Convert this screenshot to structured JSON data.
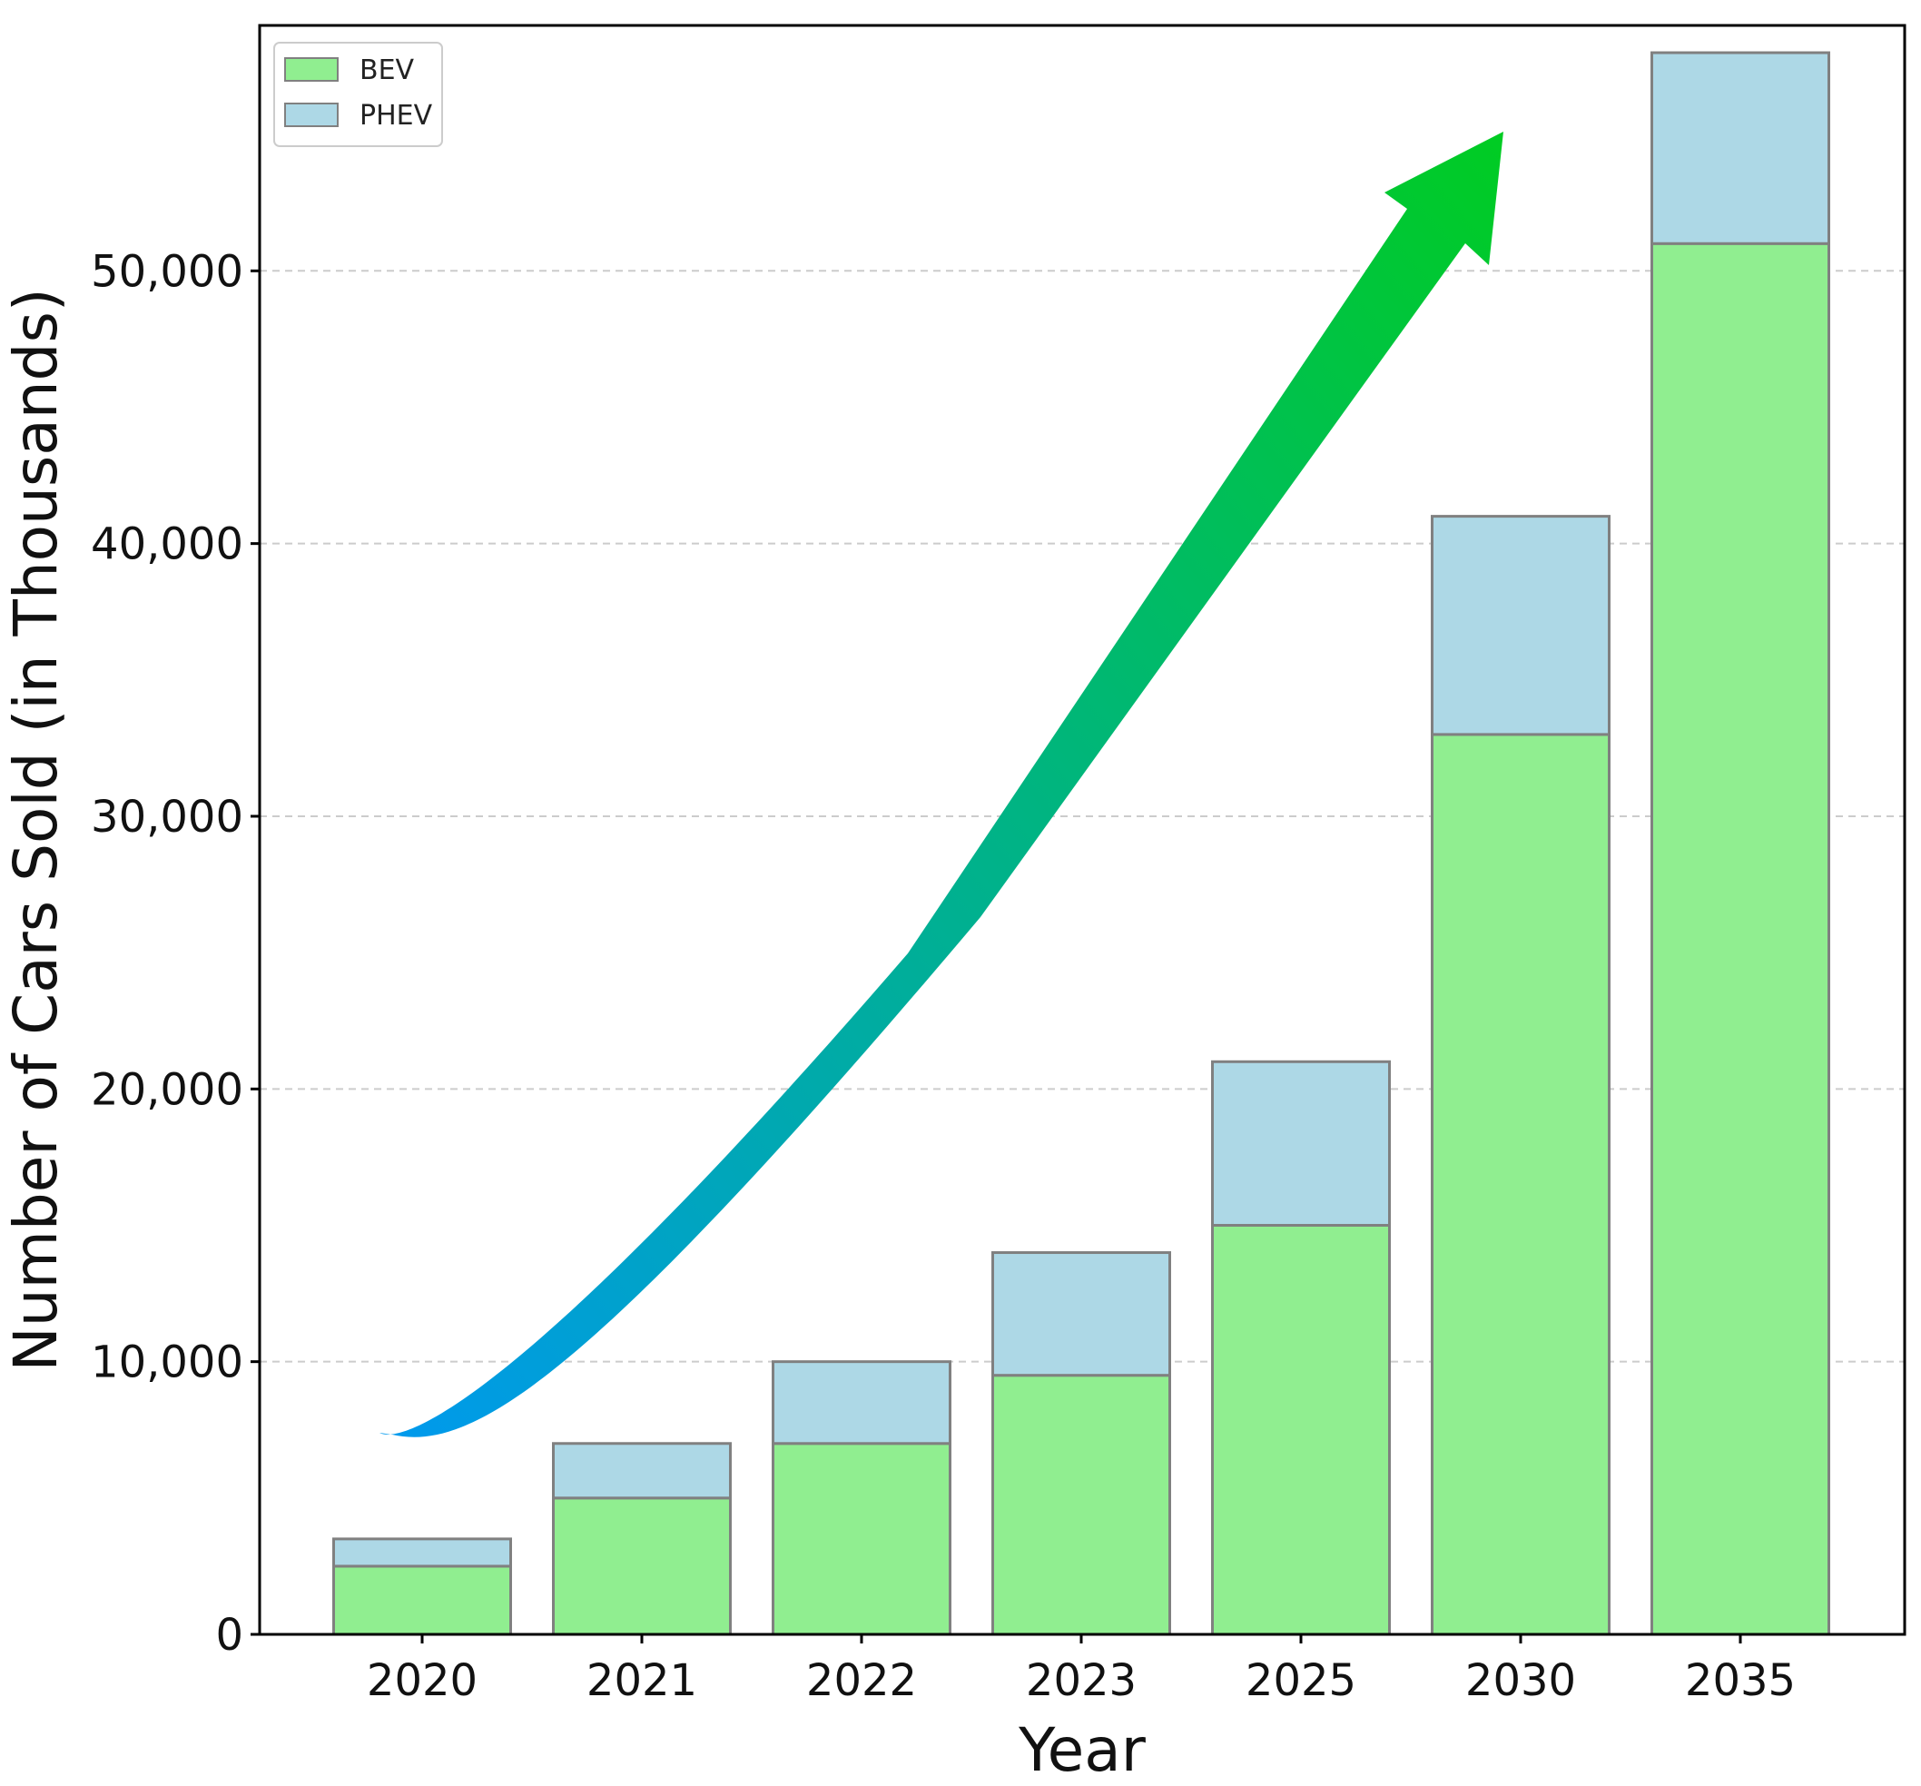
{
  "chart_data": {
    "type": "bar",
    "stacked": true,
    "categories": [
      "2020",
      "2021",
      "2022",
      "2023",
      "2025",
      "2030",
      "2035"
    ],
    "series": [
      {
        "name": "BEV",
        "values": [
          2500,
          5000,
          7000,
          9500,
          15000,
          33000,
          51000
        ],
        "color": "#90ee90"
      },
      {
        "name": "PHEV",
        "values": [
          1000,
          2000,
          3000,
          4500,
          6000,
          8000,
          7000
        ],
        "color": "#add8e6"
      }
    ],
    "xlabel": "Year",
    "ylabel": "Number of Cars Sold (in Thousands)",
    "ylim": [
      0,
      59000
    ],
    "yticks": [
      0,
      10000,
      20000,
      30000,
      40000,
      50000
    ],
    "ytick_labels": [
      "0",
      "10,000",
      "20,000",
      "30,000",
      "40,000",
      "50,000"
    ],
    "grid": "horizontal dashed",
    "legend_position": "top-left",
    "annotations": [
      {
        "kind": "trend-arrow",
        "description": "curved gradient arrow rising from 2020 toward 2030",
        "gradient_colors": [
          "#0099ee",
          "#00cc22"
        ]
      }
    ]
  },
  "colors": {
    "bar_edge": "#808080",
    "grid": "#cccccc",
    "axis": "#000000"
  }
}
